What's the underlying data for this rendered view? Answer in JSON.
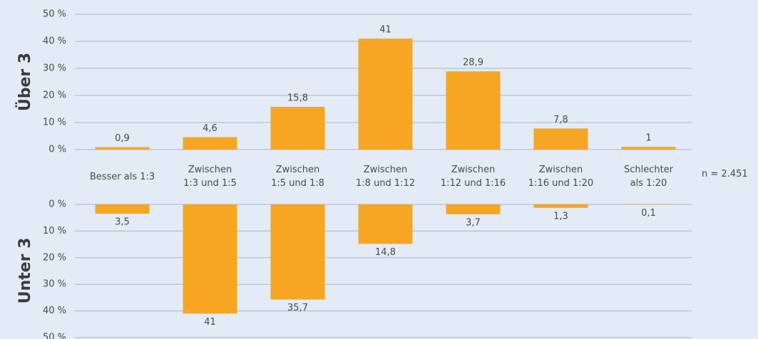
{
  "chart_data": [
    {
      "type": "bar",
      "ylabel": "Über 3",
      "categories": [
        "Besser als 1:3",
        "Zwischen\n1:3 und 1:5",
        "Zwischen\n1:5 und 1:8",
        "Zwischen\n1:8 und 1:12",
        "Zwischen\n1:12 und 1:16",
        "Zwischen\n1:16 und 1:20",
        "Schlechter\nals 1:20"
      ],
      "values": [
        0.9,
        4.6,
        15.8,
        41,
        28.9,
        7.8,
        1
      ],
      "value_labels": [
        "0,9",
        "4,6",
        "15,8",
        "41",
        "28,9",
        "7,8",
        "1"
      ],
      "color": "#f6a623",
      "ylim": [
        0,
        50
      ],
      "yticks": [
        {
          "value": 0,
          "label": "0 %"
        },
        {
          "value": 10,
          "label": "10 %"
        },
        {
          "value": 20,
          "label": "20 %"
        },
        {
          "value": 30,
          "label": "30 %"
        },
        {
          "value": 40,
          "label": "40 %"
        },
        {
          "value": 50,
          "label": "50 %"
        }
      ],
      "grid": true,
      "annotation": "n = 2.451"
    },
    {
      "type": "bar",
      "ylabel": "Unter 3",
      "values": [
        3.5,
        41,
        35.7,
        14.8,
        3.7,
        1.3,
        0.1
      ],
      "value_labels": [
        "3,5",
        "41",
        "35,7",
        "14,8",
        "3,7",
        "1,3",
        "0,1"
      ],
      "color": "#f6a623",
      "ylim": [
        0,
        50
      ],
      "invert_y": true,
      "yticks": [
        {
          "value": 0,
          "label": "0 %"
        },
        {
          "value": 10,
          "label": "10 %"
        },
        {
          "value": 20,
          "label": "20 %"
        },
        {
          "value": 30,
          "label": "30 %"
        },
        {
          "value": 40,
          "label": "40 %"
        },
        {
          "value": 50,
          "label": "50 %"
        }
      ],
      "grid": true
    }
  ]
}
